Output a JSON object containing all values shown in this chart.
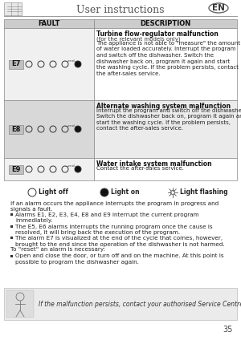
{
  "title": "User instructions",
  "en_label": "EN",
  "page_number": "35",
  "table_header": [
    "FAULT",
    "DESCRIPTION"
  ],
  "rows": [
    {
      "code": "E7",
      "fault_bg": "#f0f0f0",
      "desc_bg": "#ffffff",
      "desc_title": "Turbine flow-regulator malfunction",
      "desc_subtitle": "(for the relevant models only)",
      "desc_body": "The appliance is not able to \"measure\" the amount\nof water loaded accurately. Interrupt the program\nand switch off the dishwasher. Switch the\ndishwasher back on, program it again and start\nthe washing cycle. If the problem persists, contact\nthe after-sales service."
    },
    {
      "code": "E8",
      "fault_bg": "#d8d8d8",
      "desc_bg": "#ebebeb",
      "desc_title": "Alternate washing system malfunction",
      "desc_subtitle": "",
      "desc_body": "Interrupt the program and switch off the dishwasher.\nSwitch the dishwasher back on, program it again and\nstart the washing cycle. If the problem persists,\ncontact the after-sales service."
    },
    {
      "code": "E9",
      "fault_bg": "#f0f0f0",
      "desc_bg": "#ffffff",
      "desc_title": "Water intake system malfunction",
      "desc_subtitle": "",
      "desc_body": "Contact the after-sales service."
    }
  ],
  "body_text_1": "If an alarm occurs the appliance interrupts the program in progress and\nsignals a fault.",
  "bullets": [
    "Alarms E1, E2, E3, E4, E8 and E9 interrupt the current program\nimmediately.",
    "The E5, E6 alarms interrupts the running program once the cause is\nresolved, it will bring back the execution of the program.",
    "The alarm E7 is visualized at the end of the cycle that comes, however,\nbrought to the end since the operation of the dishwasher is not harmed."
  ],
  "reset_text": "To \"reset\" an alarm is necessary:",
  "reset_bullet": "Open and close the door, or turn off and on the machine. At this point is\npossible to program the dishwasher again.",
  "footer_note": "If the malfunction persists, contact your authorised Service Centre.",
  "bg_color": "#ffffff"
}
